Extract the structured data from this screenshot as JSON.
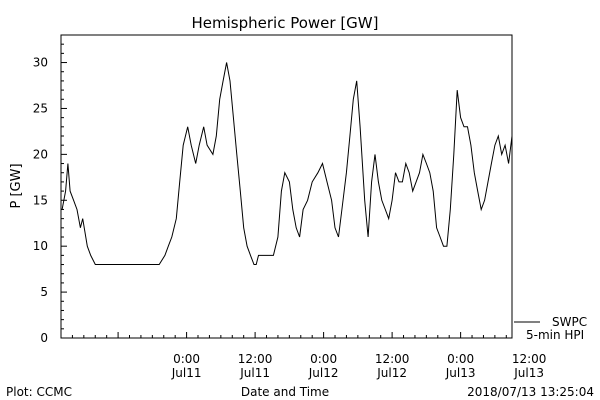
{
  "chart_data": {
    "type": "line",
    "title": "Hemispheric Power [GW]",
    "ylabel": "P [GW]",
    "xlabel": "Date and Time",
    "ylim": [
      0,
      33
    ],
    "xlim": [
      -11,
      28.5
    ],
    "grid": false,
    "y_ticks": [
      0,
      5,
      10,
      15,
      20,
      25,
      30
    ],
    "x_ticks": [
      {
        "x": 0,
        "time": "0:00",
        "date": "Jul11"
      },
      {
        "x": 6,
        "time": "12:00",
        "date": "Jul11"
      },
      {
        "x": 12,
        "time": "0:00",
        "date": "Jul12"
      },
      {
        "x": 18,
        "time": "12:00",
        "date": "Jul12"
      },
      {
        "x": 24,
        "time": "0:00",
        "date": "Jul13"
      },
      {
        "x": 30,
        "time": "12:00",
        "date": "Jul13"
      }
    ],
    "x_unit_note": "hours from Jul11 0:00; tick labels printed on axis",
    "series": [
      {
        "name": "SWPC",
        "color": "#000000",
        "x": [
          -11,
          -10.9,
          -10.6,
          -10.4,
          -10.2,
          -9.9,
          -9.6,
          -9.3,
          -9.1,
          -8.7,
          -8.4,
          -8.0,
          -6.0,
          -4.0,
          -2.4,
          -1.9,
          -1.6,
          -1.3,
          -0.9,
          -0.6,
          -0.3,
          0.1,
          0.4,
          0.8,
          1.1,
          1.5,
          1.8,
          2.3,
          2.6,
          2.9,
          3.2,
          3.5,
          3.8,
          4.1,
          4.4,
          4.7,
          5.0,
          5.3,
          5.6,
          5.9,
          6.1,
          6.3,
          6.5,
          6.8,
          7.2,
          7.6,
          8.0,
          8.3,
          8.6,
          9.0,
          9.3,
          9.6,
          9.9,
          10.2,
          10.6,
          11.0,
          11.5,
          11.9,
          12.3,
          12.7,
          13.0,
          13.3,
          13.6,
          14.0,
          14.3,
          14.6,
          14.9,
          15.2,
          15.6,
          15.9,
          16.2,
          16.5,
          16.8,
          17.1,
          17.4,
          17.7,
          18.0,
          18.3,
          18.6,
          18.9,
          19.2,
          19.5,
          19.8,
          20.1,
          20.4,
          20.7,
          21.0,
          21.3,
          21.6,
          21.9,
          22.2,
          22.5,
          22.8,
          23.1,
          23.4,
          23.7,
          24.0,
          24.3,
          24.6,
          24.9,
          25.2,
          25.5,
          25.8,
          26.1,
          26.4,
          26.7,
          27.0,
          27.3,
          27.6,
          27.9,
          28.2,
          28.5
        ],
        "values": [
          14,
          14,
          16,
          19,
          16,
          15,
          14,
          12,
          13,
          10,
          9,
          8,
          8,
          8,
          8,
          9,
          10,
          11,
          13,
          17,
          21,
          23,
          21,
          19,
          21,
          23,
          21,
          20,
          22,
          26,
          28,
          30,
          28,
          24,
          20,
          16,
          12,
          10,
          9,
          8,
          8,
          9,
          9,
          9,
          9,
          9,
          11,
          16,
          18,
          17,
          14,
          12,
          11,
          14,
          15,
          17,
          18,
          19,
          17,
          15,
          12,
          11,
          14,
          18,
          22,
          26,
          28,
          23,
          15,
          11,
          17,
          20,
          17,
          15,
          14,
          13,
          15,
          18,
          17,
          17,
          19,
          18,
          16,
          17,
          18,
          20,
          19,
          18,
          16,
          12,
          11,
          10,
          10,
          14,
          20,
          27,
          24,
          23,
          23,
          21,
          18,
          16,
          14,
          15,
          17,
          19,
          21,
          22,
          20,
          21,
          19,
          22
        ]
      }
    ]
  },
  "legend": {
    "line1": "SWPC",
    "line2": "5-min HPI"
  },
  "footer": {
    "left": "Plot: CCMC",
    "right": "2018/07/13 13:25:04"
  }
}
